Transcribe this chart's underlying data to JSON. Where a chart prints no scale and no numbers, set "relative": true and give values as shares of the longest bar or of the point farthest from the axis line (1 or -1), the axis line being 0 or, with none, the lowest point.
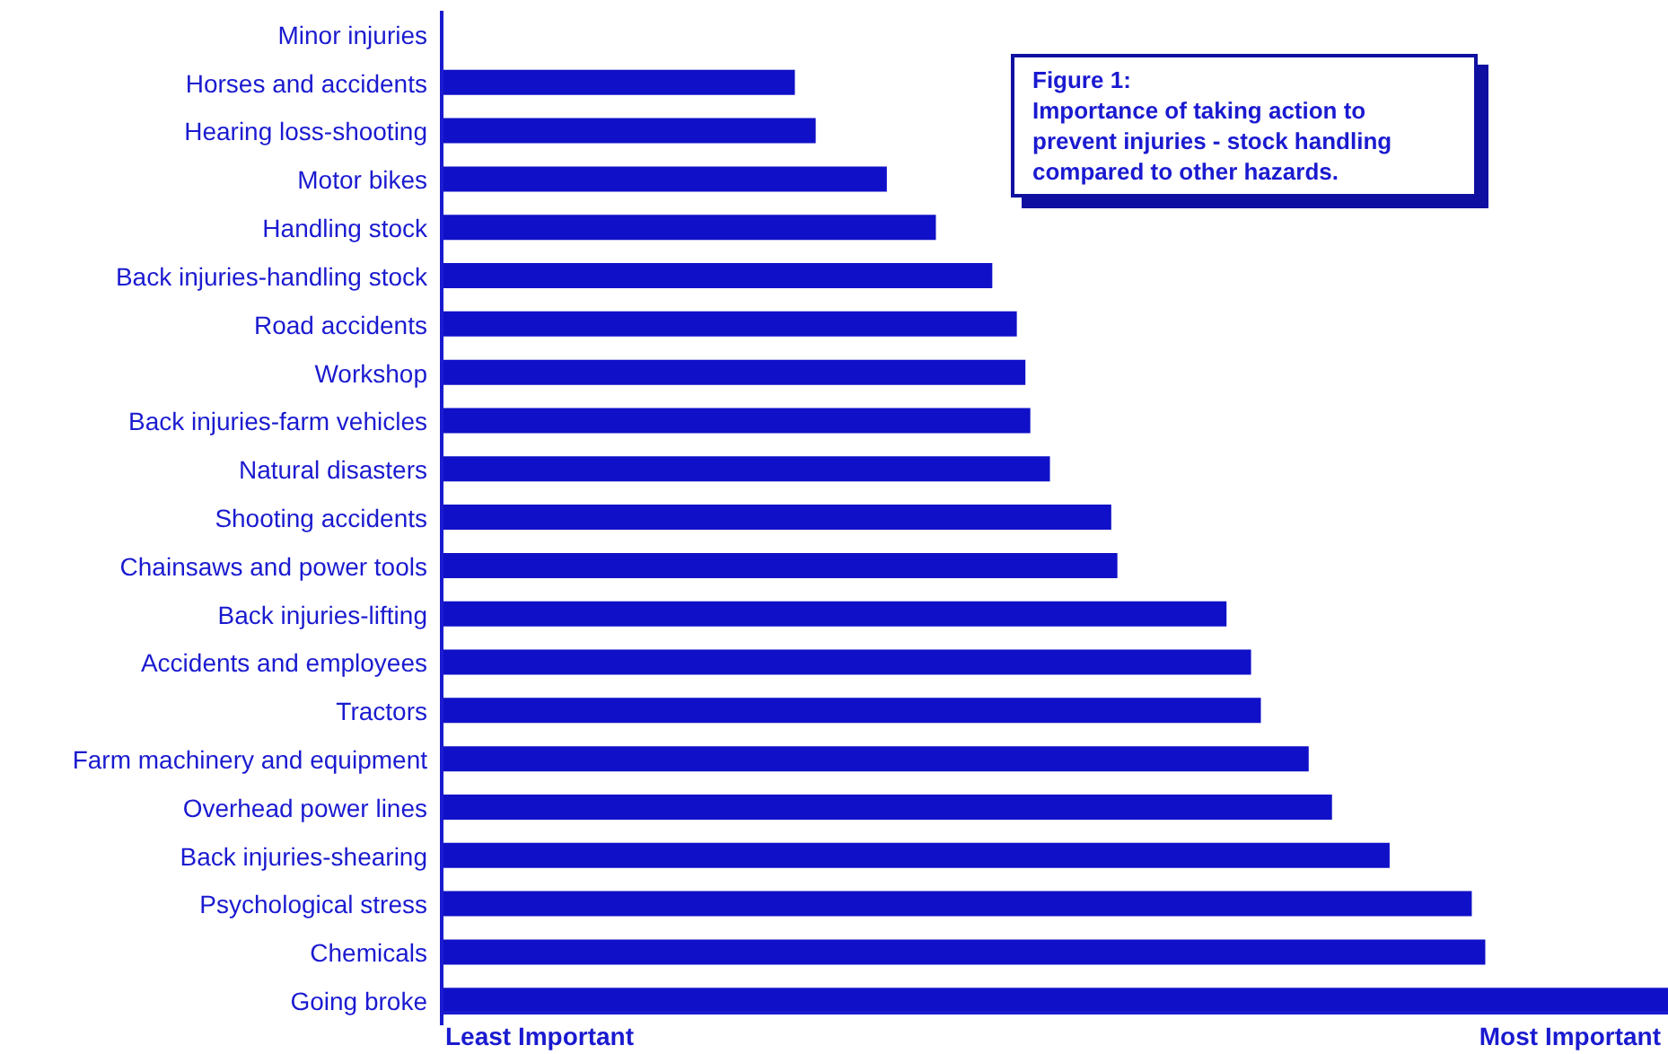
{
  "chart_data": {
    "type": "bar",
    "orientation": "horizontal",
    "relative": true,
    "categories": [
      "Minor injuries",
      "Horses and accidents",
      "Hearing loss-shooting",
      "Motor bikes",
      "Handling stock",
      "Back injuries-handling stock",
      "Road accidents",
      "Workshop",
      "Back injuries-farm vehicles",
      "Natural disasters",
      "Shooting accidents",
      "Chainsaws and power tools",
      "Back injuries-lifting",
      "Accidents and employees",
      "Tractors",
      "Farm machinery and equipment",
      "Overhead power lines",
      "Back injuries-shearing",
      "Psychological stress",
      "Chemicals",
      "Going broke"
    ],
    "values": [
      0,
      0.288,
      0.305,
      0.363,
      0.403,
      0.449,
      0.469,
      0.476,
      0.48,
      0.496,
      0.546,
      0.551,
      0.64,
      0.66,
      0.668,
      0.707,
      0.726,
      0.773,
      0.84,
      0.851,
      1
    ],
    "color": "#1010c8",
    "annotations": [
      "Figure 1:\nImportance of taking action to prevent injuries - stock handling compared to other hazards.",
      "Least Important",
      "Most Important"
    ],
    "grid": false,
    "legend": false
  }
}
